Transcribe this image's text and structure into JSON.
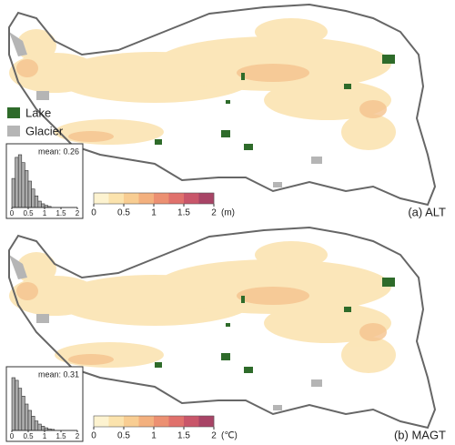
{
  "legend": {
    "lake": "Lake",
    "glacier": "Glacier"
  },
  "panels": [
    {
      "label": "(a) ALT",
      "mean_label": "mean: 0.26",
      "unit": "(m)",
      "colorbar_lim": [
        0,
        2
      ],
      "colorbar_ticks": [
        0,
        0.5,
        1,
        1.5,
        2
      ],
      "colorbar_colors": [
        "#fdf3d0",
        "#fbe3ad",
        "#f8cd92",
        "#f3b07e",
        "#ec9072",
        "#e0716c",
        "#c9566a",
        "#a84466"
      ],
      "hist_xlim": [
        0,
        2
      ],
      "hist_xticks": [
        0,
        0.5,
        1,
        1.5,
        2
      ],
      "hist_ylim": [
        0,
        1
      ],
      "hist_bins": [
        0,
        0.1,
        0.2,
        0.3,
        0.4,
        0.5,
        0.6,
        0.7,
        0.8,
        0.9,
        1.0,
        1.1,
        1.2
      ],
      "hist_counts": [
        0.55,
        0.95,
        1.0,
        0.85,
        0.7,
        0.5,
        0.35,
        0.22,
        0.12,
        0.07,
        0.04,
        0.02
      ]
    },
    {
      "label": "(b) MAGT",
      "mean_label": "mean: 0.31",
      "unit": "(℃)",
      "colorbar_lim": [
        0,
        2
      ],
      "colorbar_ticks": [
        0,
        0.5,
        1,
        1.5,
        2
      ],
      "colorbar_colors": [
        "#fdf3d0",
        "#fbe3ad",
        "#f8cd92",
        "#f3b07e",
        "#ec9072",
        "#e0716c",
        "#c9566a",
        "#a84466"
      ],
      "hist_xlim": [
        0,
        2
      ],
      "hist_xticks": [
        0,
        0.5,
        1,
        1.5,
        2
      ],
      "hist_ylim": [
        0,
        1
      ],
      "hist_bins": [
        0,
        0.1,
        0.2,
        0.3,
        0.4,
        0.5,
        0.6,
        0.7,
        0.8,
        0.9,
        1.0,
        1.1,
        1.2,
        1.3
      ],
      "hist_counts": [
        1.0,
        0.95,
        0.8,
        0.65,
        0.5,
        0.38,
        0.27,
        0.18,
        0.12,
        0.08,
        0.05,
        0.03,
        0.02
      ]
    }
  ]
}
